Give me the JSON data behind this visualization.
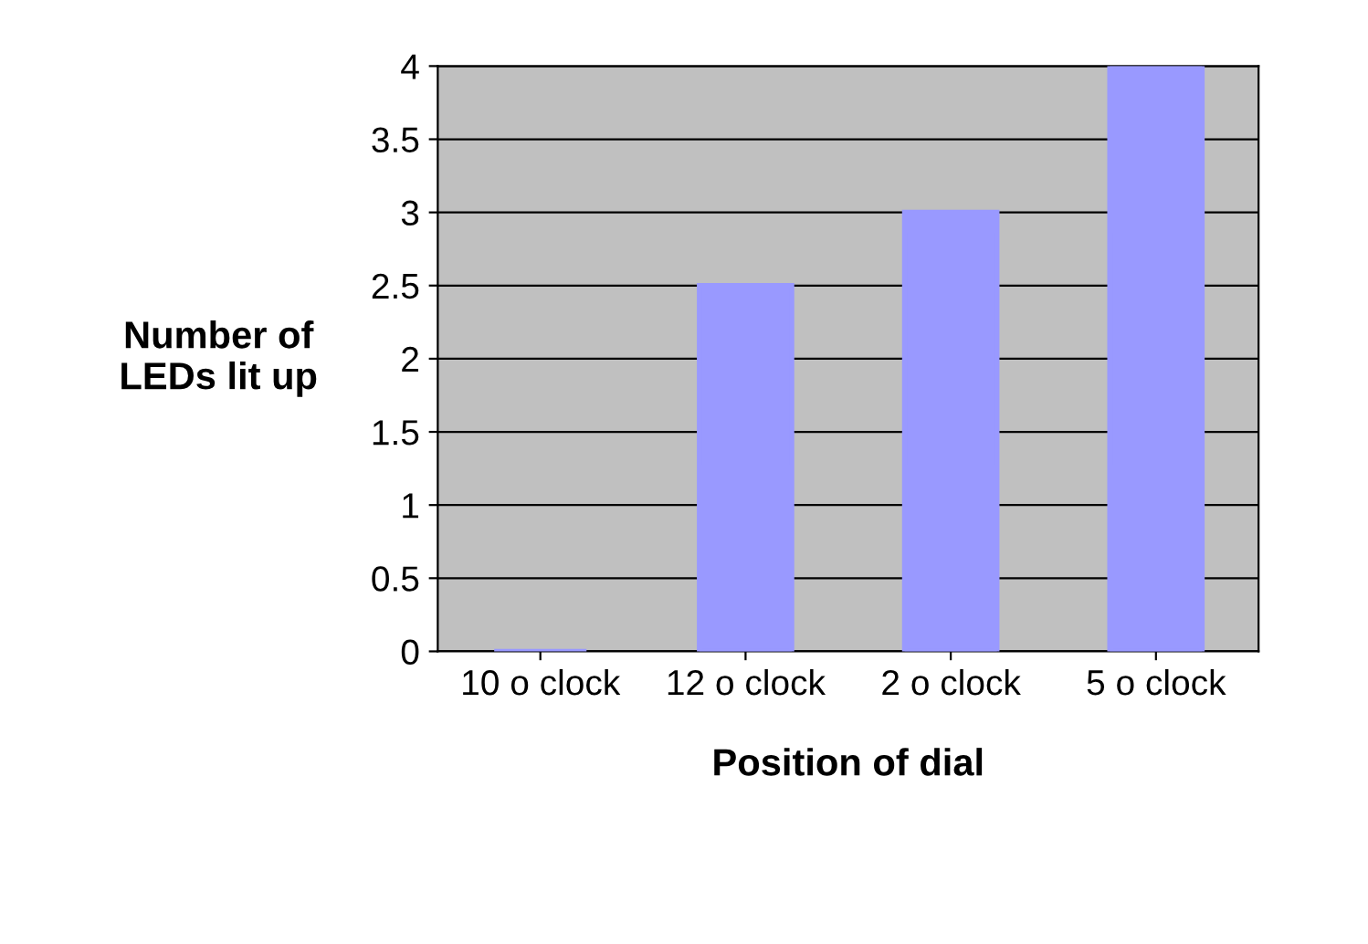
{
  "chart_data": {
    "type": "bar",
    "xlabel": "Position of dial",
    "ylabel": "Number of\nLEDs lit up",
    "categories": [
      "10 o clock",
      "12 o clock",
      "2 o clock",
      "5 o clock"
    ],
    "values": [
      0,
      2.5,
      3,
      4
    ],
    "color": "#9999ff",
    "ylim": [
      0,
      4
    ],
    "yticks": [
      0,
      0.5,
      1,
      1.5,
      2,
      2.5,
      3,
      3.5,
      4
    ],
    "grid": "y"
  }
}
